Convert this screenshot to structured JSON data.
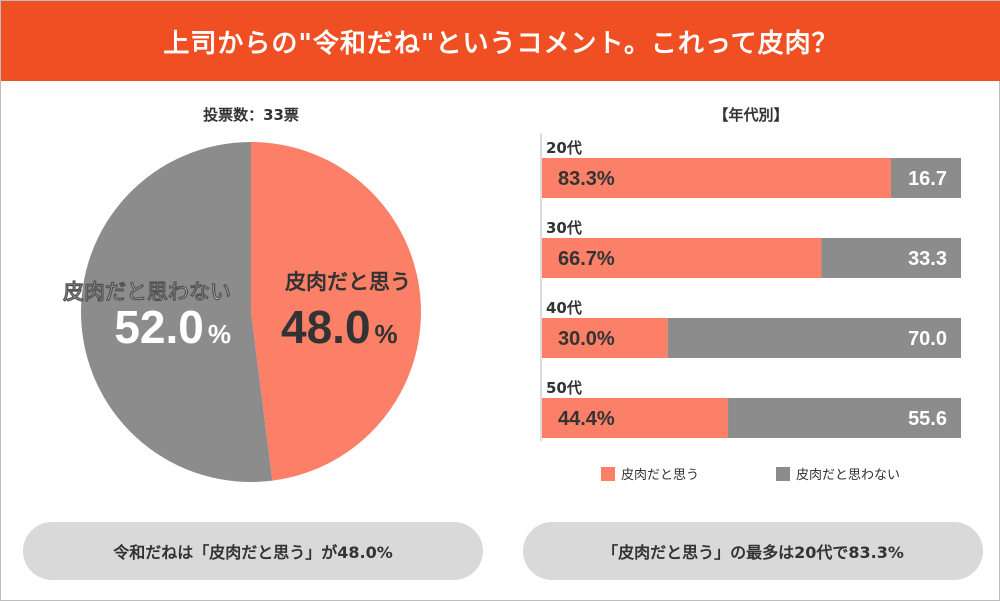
{
  "header": {
    "title": "上司からの\"令和だね\"というコメント。これって皮肉？"
  },
  "colors": {
    "header": "#f04e23",
    "yes": "#fb8067",
    "no": "#8c8c8c",
    "pill": "#d9d9d9"
  },
  "chart_data": [
    {
      "type": "pie",
      "title": "投票数：33票",
      "slices": [
        {
          "label": "皮肉だと思う",
          "value": 48.0,
          "display": "48.0",
          "unit": "%"
        },
        {
          "label": "皮肉だと思わない",
          "value": 52.0,
          "display": "52.0",
          "unit": "%"
        }
      ]
    },
    {
      "type": "bar",
      "orientation": "horizontal",
      "stacked": true,
      "title": "【年代別】",
      "categories": [
        "20代",
        "30代",
        "40代",
        "50代"
      ],
      "series": [
        {
          "name": "皮肉だと思う",
          "values": [
            83.3,
            66.7,
            30.0,
            44.4
          ],
          "labels": [
            "83.3%",
            "66.7%",
            "30.0%",
            "44.4%"
          ]
        },
        {
          "name": "皮肉だと思わない",
          "values": [
            16.7,
            33.3,
            70.0,
            55.6
          ],
          "labels": [
            "16.7",
            "33.3",
            "70.0",
            "55.6"
          ]
        }
      ],
      "xlim": [
        0,
        100
      ],
      "legend": "bottom"
    }
  ],
  "summary": {
    "left": "令和だねは「皮肉だと思う」が48.0%",
    "right": "「皮肉だと思う」の最多は20代で83.3%"
  }
}
